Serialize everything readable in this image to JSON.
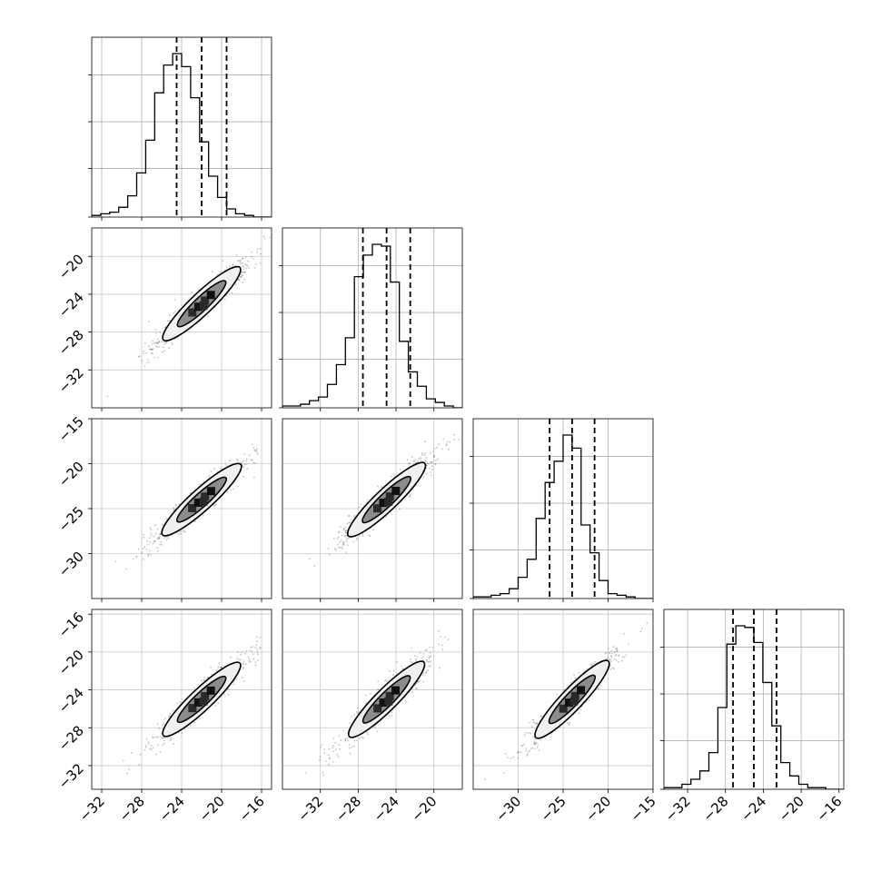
{
  "chart_data": {
    "type": "corner",
    "description_free": true,
    "parameters": [
      {
        "index": 0,
        "range": [
          -33,
          -15
        ],
        "hist_ticks": [
          -32,
          -28,
          -24,
          -20,
          -16
        ],
        "quantiles": [
          -24.5,
          -22.0,
          -19.5
        ]
      },
      {
        "index": 1,
        "range": [
          -36,
          -17
        ],
        "hist_ticks": [
          -32,
          -28,
          -24,
          -20
        ],
        "quantiles": [
          -27.5,
          -25.0,
          -22.5
        ]
      },
      {
        "index": 2,
        "range": [
          -35,
          -15
        ],
        "hist_ticks": [
          -30,
          -25,
          -20,
          -15
        ],
        "quantiles": [
          -26.5,
          -24.0,
          -21.5
        ]
      },
      {
        "index": 3,
        "range": [
          -34.5,
          -15.5
        ],
        "hist_ticks": [
          -32,
          -28,
          -24,
          -20,
          -16
        ],
        "quantiles": [
          -27.2,
          -25.0,
          -22.6
        ]
      }
    ],
    "y_ticks": {
      "1": [
        "-20",
        "-24",
        "-28",
        "-32"
      ],
      "2": [
        "-15",
        "-20",
        "-25",
        "-30"
      ],
      "3": [
        "-16",
        "-20",
        "-24",
        "-28",
        "-32"
      ]
    },
    "x_ticks": {
      "0": [
        "-32",
        "-28",
        "-24",
        "-20",
        "-16"
      ],
      "1": [
        "-32",
        "-28",
        "-24",
        "-20"
      ],
      "2": [
        "-30",
        "-25",
        "-20",
        "-15"
      ],
      "3": [
        "-32",
        "-28",
        "-24",
        "-20",
        "-16"
      ]
    },
    "histograms": [
      {
        "bin_edges_start": -33,
        "bin_width": 0.9,
        "counts": [
          1,
          2,
          3,
          6,
          13,
          27,
          47,
          76,
          93,
          100,
          92,
          73,
          46,
          25,
          12,
          5,
          2,
          1,
          0,
          0
        ]
      },
      {
        "bin_edges_start": -36,
        "bin_width": 0.95,
        "counts": [
          1,
          1,
          2,
          4,
          6,
          13,
          24,
          39,
          73,
          85,
          91,
          90,
          70,
          37,
          20,
          12,
          5,
          3,
          1,
          0
        ]
      },
      {
        "bin_edges_start": -35,
        "bin_width": 1.0,
        "counts": [
          1,
          1,
          2,
          3,
          6,
          13,
          24,
          49,
          71,
          84,
          100,
          92,
          45,
          28,
          11,
          3,
          2,
          1,
          0,
          0
        ]
      },
      {
        "bin_edges_start": -34.5,
        "bin_width": 0.95,
        "counts": [
          1,
          1,
          3,
          6,
          11,
          22,
          49,
          87,
          98,
          97,
          88,
          64,
          38,
          16,
          8,
          3,
          1,
          1,
          0,
          0
        ]
      }
    ],
    "correlation": "strong positive between all parameter pairs",
    "grid": true
  }
}
